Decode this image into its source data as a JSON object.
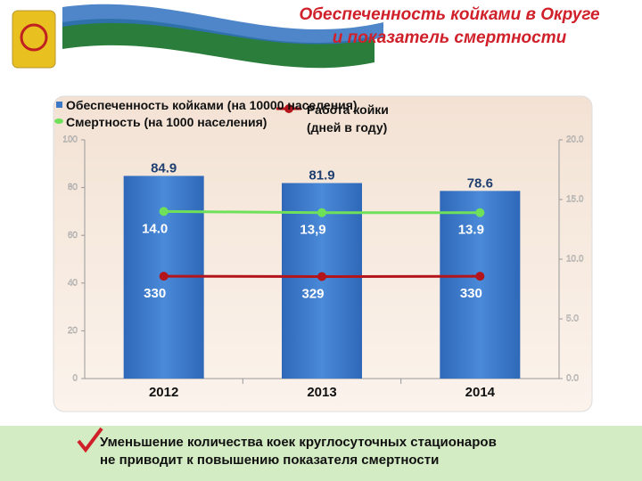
{
  "header": {
    "title": "Обеспеченность койками в Округе\nи показатель смертности"
  },
  "chart_data": {
    "type": "bar",
    "categories": [
      "2012",
      "2013",
      "2014"
    ],
    "series": [
      {
        "name": "Обеспеченность койками (на 10000 населения)",
        "type": "bar",
        "color": "#3a78c8",
        "values": [
          84.9,
          81.9,
          78.6
        ]
      },
      {
        "name": "Смертность (на 1000 населения)",
        "type": "line",
        "axis": "y2",
        "color": "#6fe05a",
        "values": [
          14.0,
          13.9,
          13.9
        ],
        "value_labels": [
          "14.0",
          "13,9",
          "13.9"
        ]
      },
      {
        "name": "Работа койки\n(дней в году)",
        "type": "line",
        "axis": "y3",
        "color": "#b3151b",
        "values": [
          330,
          329,
          330
        ]
      }
    ],
    "ylim": [
      0,
      100
    ],
    "yticks": [
      0,
      20,
      40,
      60,
      80,
      100
    ],
    "y2lim": [
      0,
      20
    ],
    "y2ticks": [
      {
        "value": 0,
        "label": "0.0"
      },
      {
        "value": 5,
        "label": "5.0"
      },
      {
        "value": 10,
        "label": "10.0"
      },
      {
        "value": 15,
        "label": "15.0"
      },
      {
        "value": 20,
        "label": "20.0"
      }
    ],
    "y3lim": [
      0,
      770
    ],
    "grid": false
  },
  "footer": {
    "note": "Уменьшение количества коек круглосуточных стационаров\nне приводит к повышению показателя смертности"
  }
}
